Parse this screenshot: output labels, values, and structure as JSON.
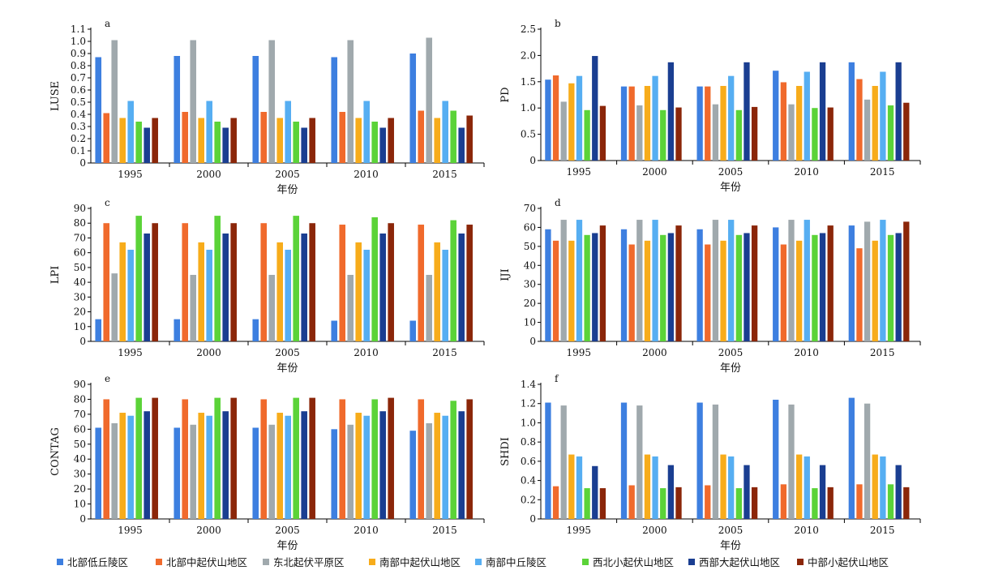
{
  "legend": [
    "北部低丘陵区",
    "北部中起伏山地区",
    "东北起伏平原区",
    "南部中起伏山地区",
    "南部中丘陵区",
    "西北小起伏山地区",
    "西部大起伏山地区",
    "中部小起伏山地区"
  ],
  "colors": [
    "#3d7fe0",
    "#f06a2c",
    "#a0a9ad",
    "#f7ac1b",
    "#56aef2",
    "#5bd338",
    "#1a3e91",
    "#8b2609"
  ],
  "chart_data": [
    {
      "type": "bar",
      "letter": "a",
      "ylabel": "LUSE",
      "xlabel": "年份",
      "categories": [
        "1995",
        "2000",
        "2005",
        "2010",
        "2015"
      ],
      "ylim": [
        0,
        1.1
      ],
      "yticks": [
        "0",
        "0.1",
        "0.2",
        "0.3",
        "0.4",
        "0.5",
        "0.6",
        "0.7",
        "0.8",
        "0.9",
        "1.0",
        "1.1"
      ],
      "series": [
        {
          "name": "北部低丘陵区",
          "values": [
            0.87,
            0.88,
            0.88,
            0.87,
            0.9
          ]
        },
        {
          "name": "北部中起伏山地区",
          "values": [
            0.41,
            0.42,
            0.42,
            0.42,
            0.43
          ]
        },
        {
          "name": "东北起伏平原区",
          "values": [
            1.01,
            1.01,
            1.01,
            1.01,
            1.03
          ]
        },
        {
          "name": "南部中起伏山地区",
          "values": [
            0.37,
            0.37,
            0.37,
            0.37,
            0.37
          ]
        },
        {
          "name": "南部中丘陵区",
          "values": [
            0.51,
            0.51,
            0.51,
            0.51,
            0.51
          ]
        },
        {
          "name": "西北小起伏山地区",
          "values": [
            0.34,
            0.34,
            0.34,
            0.34,
            0.43
          ]
        },
        {
          "name": "西部大起伏山地区",
          "values": [
            0.29,
            0.29,
            0.29,
            0.29,
            0.29
          ]
        },
        {
          "name": "中部小起伏山地区",
          "values": [
            0.37,
            0.37,
            0.37,
            0.37,
            0.39
          ]
        }
      ]
    },
    {
      "type": "bar",
      "letter": "b",
      "ylabel": "PD",
      "xlabel": "年份",
      "categories": [
        "1995",
        "2000",
        "2005",
        "2010",
        "2015"
      ],
      "ylim": [
        0,
        2.5
      ],
      "yticks": [
        "0",
        "0.5",
        "1.0",
        "1.5",
        "2.0",
        "2.5"
      ],
      "series": [
        {
          "name": "北部低丘陵区",
          "values": [
            1.54,
            1.41,
            1.41,
            1.71,
            1.87
          ]
        },
        {
          "name": "北部中起伏山地区",
          "values": [
            1.62,
            1.41,
            1.41,
            1.49,
            1.55
          ]
        },
        {
          "name": "东北起伏平原区",
          "values": [
            1.12,
            1.05,
            1.07,
            1.07,
            1.16
          ]
        },
        {
          "name": "南部中起伏山地区",
          "values": [
            1.47,
            1.42,
            1.42,
            1.42,
            1.42
          ]
        },
        {
          "name": "南部中丘陵区",
          "values": [
            1.61,
            1.61,
            1.61,
            1.69,
            1.69
          ]
        },
        {
          "name": "西北小起伏山地区",
          "values": [
            0.96,
            0.96,
            0.96,
            1.0,
            1.05
          ]
        },
        {
          "name": "西部大起伏山地区",
          "values": [
            1.99,
            1.87,
            1.87,
            1.87,
            1.87
          ]
        },
        {
          "name": "中部小起伏山地区",
          "values": [
            1.04,
            1.01,
            1.02,
            1.01,
            1.1
          ]
        }
      ]
    },
    {
      "type": "bar",
      "letter": "c",
      "ylabel": "LPI",
      "xlabel": "年份",
      "categories": [
        "1995",
        "2000",
        "2005",
        "2010",
        "2015"
      ],
      "ylim": [
        0,
        90
      ],
      "yticks": [
        "0",
        "10",
        "20",
        "30",
        "40",
        "50",
        "60",
        "70",
        "80",
        "90"
      ],
      "series": [
        {
          "name": "北部低丘陵区",
          "values": [
            15,
            15,
            15,
            14,
            14
          ]
        },
        {
          "name": "北部中起伏山地区",
          "values": [
            80,
            80,
            80,
            79,
            79
          ]
        },
        {
          "name": "东北起伏平原区",
          "values": [
            46,
            45,
            45,
            45,
            45
          ]
        },
        {
          "name": "南部中起伏山地区",
          "values": [
            67,
            67,
            67,
            67,
            67
          ]
        },
        {
          "name": "南部中丘陵区",
          "values": [
            62,
            62,
            62,
            62,
            62
          ]
        },
        {
          "name": "西北小起伏山地区",
          "values": [
            85,
            85,
            85,
            84,
            82
          ]
        },
        {
          "name": "西部大起伏山地区",
          "values": [
            73,
            73,
            73,
            73,
            73
          ]
        },
        {
          "name": "中部小起伏山地区",
          "values": [
            80,
            80,
            80,
            80,
            79
          ]
        }
      ]
    },
    {
      "type": "bar",
      "letter": "d",
      "ylabel": "IJI",
      "xlabel": "年份",
      "categories": [
        "1995",
        "2000",
        "2005",
        "2010",
        "2015"
      ],
      "ylim": [
        0,
        70
      ],
      "yticks": [
        "0",
        "10",
        "20",
        "30",
        "40",
        "50",
        "60",
        "70"
      ],
      "series": [
        {
          "name": "北部低丘陵区",
          "values": [
            59,
            59,
            59,
            60,
            61
          ]
        },
        {
          "name": "北部中起伏山地区",
          "values": [
            53,
            51,
            51,
            51,
            49
          ]
        },
        {
          "name": "东北起伏平原区",
          "values": [
            64,
            64,
            64,
            64,
            63
          ]
        },
        {
          "name": "南部中起伏山地区",
          "values": [
            53,
            53,
            53,
            53,
            53
          ]
        },
        {
          "name": "南部中丘陵区",
          "values": [
            64,
            64,
            64,
            64,
            64
          ]
        },
        {
          "name": "西北小起伏山地区",
          "values": [
            56,
            56,
            56,
            56,
            56
          ]
        },
        {
          "name": "西部大起伏山地区",
          "values": [
            57,
            57,
            57,
            57,
            57
          ]
        },
        {
          "name": "中部小起伏山地区",
          "values": [
            61,
            61,
            61,
            61,
            63
          ]
        }
      ]
    },
    {
      "type": "bar",
      "letter": "e",
      "ylabel": "CONTAG",
      "xlabel": "年份",
      "categories": [
        "1995",
        "2000",
        "2005",
        "2010",
        "2015"
      ],
      "ylim": [
        0,
        90
      ],
      "yticks": [
        "0",
        "10",
        "20",
        "30",
        "40",
        "50",
        "60",
        "70",
        "80",
        "90"
      ],
      "series": [
        {
          "name": "北部低丘陵区",
          "values": [
            61,
            61,
            61,
            60,
            59
          ]
        },
        {
          "name": "北部中起伏山地区",
          "values": [
            80,
            80,
            80,
            80,
            80
          ]
        },
        {
          "name": "东北起伏平原区",
          "values": [
            64,
            63,
            63,
            63,
            64
          ]
        },
        {
          "name": "南部中起伏山地区",
          "values": [
            71,
            71,
            71,
            71,
            71
          ]
        },
        {
          "name": "南部中丘陵区",
          "values": [
            69,
            69,
            69,
            69,
            69
          ]
        },
        {
          "name": "西北小起伏山地区",
          "values": [
            81,
            81,
            81,
            80,
            79
          ]
        },
        {
          "name": "西部大起伏山地区",
          "values": [
            72,
            72,
            72,
            72,
            72
          ]
        },
        {
          "name": "中部小起伏山地区",
          "values": [
            81,
            81,
            81,
            81,
            80
          ]
        }
      ]
    },
    {
      "type": "bar",
      "letter": "f",
      "ylabel": "SHDI",
      "xlabel": "年份",
      "categories": [
        "1995",
        "2000",
        "2005",
        "2010",
        "2015"
      ],
      "ylim": [
        0,
        1.4
      ],
      "yticks": [
        "0",
        "0.2",
        "0.4",
        "0.6",
        "0.8",
        "1.0",
        "1.2",
        "1.4"
      ],
      "series": [
        {
          "name": "北部低丘陵区",
          "values": [
            1.21,
            1.21,
            1.21,
            1.24,
            1.26
          ]
        },
        {
          "name": "北部中起伏山地区",
          "values": [
            0.34,
            0.35,
            0.35,
            0.36,
            0.36
          ]
        },
        {
          "name": "东北起伏平原区",
          "values": [
            1.18,
            1.18,
            1.19,
            1.19,
            1.2
          ]
        },
        {
          "name": "南部中起伏山地区",
          "values": [
            0.67,
            0.67,
            0.67,
            0.67,
            0.67
          ]
        },
        {
          "name": "南部中丘陵区",
          "values": [
            0.65,
            0.65,
            0.65,
            0.65,
            0.65
          ]
        },
        {
          "name": "西北小起伏山地区",
          "values": [
            0.32,
            0.32,
            0.32,
            0.32,
            0.36
          ]
        },
        {
          "name": "西部大起伏山地区",
          "values": [
            0.55,
            0.56,
            0.56,
            0.56,
            0.56
          ]
        },
        {
          "name": "中部小起伏山地区",
          "values": [
            0.32,
            0.33,
            0.33,
            0.33,
            0.33
          ]
        }
      ]
    }
  ]
}
